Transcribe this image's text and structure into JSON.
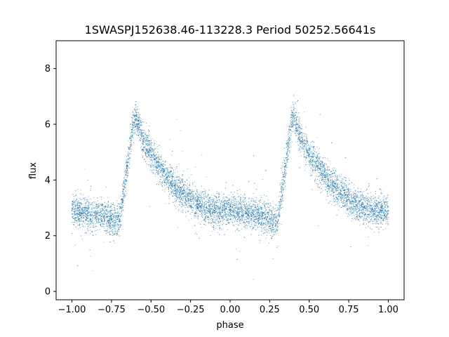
{
  "chart_data": {
    "type": "scatter",
    "title": "1SWASPJ152638.46-113228.3 Period 50252.56641s",
    "xlabel": "phase",
    "ylabel": "flux",
    "xlim": [
      -1.1,
      1.1
    ],
    "ylim": [
      -0.3,
      9.0
    ],
    "x_ticks": [
      -1.0,
      -0.75,
      -0.5,
      -0.25,
      0.0,
      0.25,
      0.5,
      0.75,
      1.0
    ],
    "x_tick_labels": [
      "−1.00",
      "−0.75",
      "−0.50",
      "−0.25",
      "0.00",
      "0.25",
      "0.50",
      "0.75",
      "1.00"
    ],
    "y_ticks": [
      0,
      2,
      4,
      6,
      8
    ],
    "y_tick_labels": [
      "0",
      "2",
      "4",
      "6",
      "8"
    ],
    "grid": false,
    "legend": "none",
    "marker_color": "#1f77b4",
    "series": [
      {
        "x": [
          -1.0,
          -0.9,
          -0.8,
          -0.75,
          -0.7,
          -0.68,
          -0.65,
          -0.62,
          -0.6,
          -0.58,
          -0.55,
          -0.5,
          -0.45,
          -0.4,
          -0.35,
          -0.3,
          -0.25,
          -0.2,
          -0.15,
          -0.1,
          -0.05,
          0.0,
          0.05,
          0.1,
          0.15,
          0.2,
          0.25,
          0.3,
          0.32,
          0.35,
          0.38,
          0.4,
          0.42,
          0.45,
          0.5,
          0.55,
          0.6,
          0.65,
          0.7,
          0.75,
          0.8,
          0.85,
          0.9,
          0.95,
          1.0
        ],
        "y": [
          2.9,
          2.8,
          2.7,
          2.6,
          2.5,
          3.3,
          4.5,
          5.8,
          6.3,
          6.0,
          5.4,
          4.9,
          4.5,
          4.1,
          3.8,
          3.5,
          3.3,
          3.1,
          3.0,
          2.9,
          2.9,
          2.9,
          2.85,
          2.8,
          2.75,
          2.7,
          2.6,
          2.5,
          3.3,
          4.5,
          5.8,
          6.3,
          6.0,
          5.4,
          4.9,
          4.5,
          4.1,
          3.8,
          3.5,
          3.3,
          3.1,
          3.0,
          2.95,
          2.9,
          2.9
        ]
      }
    ]
  }
}
